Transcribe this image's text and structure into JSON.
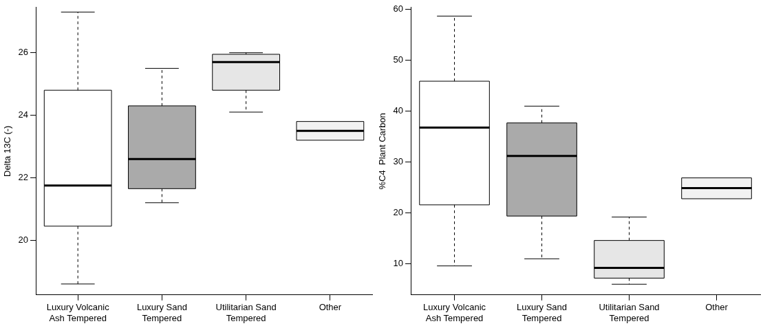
{
  "chart_data": [
    {
      "type": "box",
      "ylabel": "Delta 13C (-)",
      "categories": [
        "Luxury Volcanic Ash Tempered",
        "Luxury Sand Tempered",
        "Utilitarian Sand Tempered",
        "Other"
      ],
      "boxes": [
        {
          "low": 18.6,
          "q1": 20.45,
          "median": 21.75,
          "q3": 24.8,
          "high": 27.3
        },
        {
          "low": 21.2,
          "q1": 21.65,
          "median": 22.6,
          "q3": 24.3,
          "high": 25.5
        },
        {
          "low": 24.1,
          "q1": 24.8,
          "median": 25.7,
          "q3": 25.95,
          "high": 26.0
        },
        {
          "low": 23.2,
          "q1": 23.2,
          "median": 23.5,
          "q3": 23.8,
          "high": 23.8
        }
      ],
      "colors": [
        "#ffffff",
        "#aaaaaa",
        "#e6e6e6",
        "#f2f2f2"
      ],
      "ylim": [
        18.25,
        27.45
      ],
      "yticks": [
        20,
        22,
        24,
        26
      ],
      "grid": false
    },
    {
      "type": "box",
      "ylabel": "%C4  Plant Carbon",
      "categories": [
        "Luxury Volcanic Ash Tempered",
        "Luxury Sand Tempered",
        "Utilitarian Sand Tempered",
        "Other"
      ],
      "boxes": [
        {
          "low": 9.6,
          "q1": 21.6,
          "median": 36.8,
          "q3": 45.9,
          "high": 58.7
        },
        {
          "low": 11,
          "q1": 19.4,
          "median": 31.2,
          "q3": 37.7,
          "high": 41
        },
        {
          "low": 6.0,
          "q1": 7.2,
          "median": 9.2,
          "q3": 14.6,
          "high": 19.2
        },
        {
          "low": 22.8,
          "q1": 22.8,
          "median": 24.9,
          "q3": 26.9,
          "high": 26.9
        }
      ],
      "colors": [
        "#ffffff",
        "#aaaaaa",
        "#e6e6e6",
        "#f2f2f2"
      ],
      "ylim": [
        3.9,
        60.4
      ],
      "yticks": [
        10,
        20,
        30,
        40,
        50,
        60
      ],
      "grid": false
    }
  ]
}
